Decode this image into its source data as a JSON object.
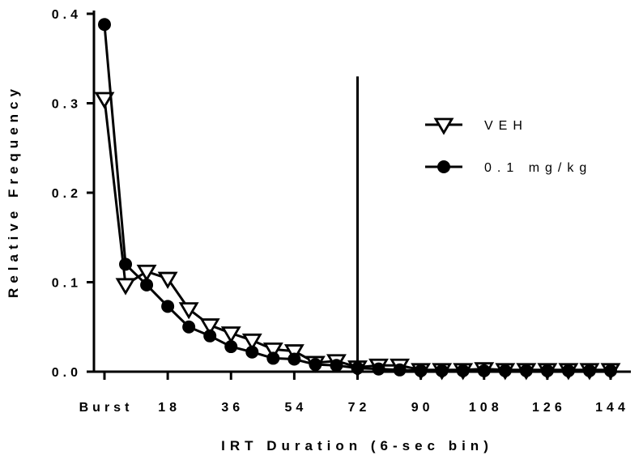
{
  "chart_data": {
    "type": "line",
    "title": "",
    "xlabel": "IRT Duration (6-sec bin)",
    "ylabel": "Relative Frequency",
    "x_tick_labels": [
      "Burst",
      "18",
      "36",
      "54",
      "72",
      "90",
      "108",
      "126",
      "144"
    ],
    "x_tick_values": [
      0,
      18,
      36,
      54,
      72,
      90,
      108,
      126,
      144
    ],
    "y_tick_labels": [
      "0.0",
      "0.1",
      "0.2",
      "0.3",
      "0.4"
    ],
    "y_tick_values": [
      0.0,
      0.1,
      0.2,
      0.3,
      0.4
    ],
    "xlim": [
      -3,
      148
    ],
    "ylim": [
      0,
      0.41
    ],
    "grid": false,
    "legend_position": "top-right",
    "vertical_reference_line": {
      "x": 72,
      "y_top": 0.33
    },
    "series": [
      {
        "name": "VEH",
        "marker": "triangle-down-open",
        "x": [
          0,
          6,
          12,
          18,
          24,
          30,
          36,
          42,
          48,
          54,
          60,
          66,
          72,
          78,
          84,
          90,
          96,
          102,
          108,
          114,
          120,
          126,
          132,
          138,
          144
        ],
        "values": [
          0.305,
          0.097,
          0.112,
          0.104,
          0.07,
          0.052,
          0.043,
          0.035,
          0.025,
          0.023,
          0.01,
          0.012,
          0.005,
          0.007,
          0.007,
          0.002,
          0.002,
          0.002,
          0.003,
          0.002,
          0.002,
          0.002,
          0.002,
          0.002,
          0.002
        ]
      },
      {
        "name": "0.1 mg/kg",
        "marker": "circle-filled",
        "x": [
          0,
          6,
          12,
          18,
          24,
          30,
          36,
          42,
          48,
          54,
          60,
          66,
          72,
          78,
          84,
          90,
          96,
          102,
          108,
          114,
          120,
          126,
          132,
          138,
          144
        ],
        "values": [
          0.388,
          0.12,
          0.097,
          0.073,
          0.05,
          0.04,
          0.028,
          0.022,
          0.015,
          0.014,
          0.008,
          0.007,
          0.004,
          0.003,
          0.002,
          0.001,
          0.001,
          0.001,
          0.001,
          0.001,
          0.001,
          0.001,
          0.001,
          0.001,
          0.001
        ]
      }
    ]
  }
}
